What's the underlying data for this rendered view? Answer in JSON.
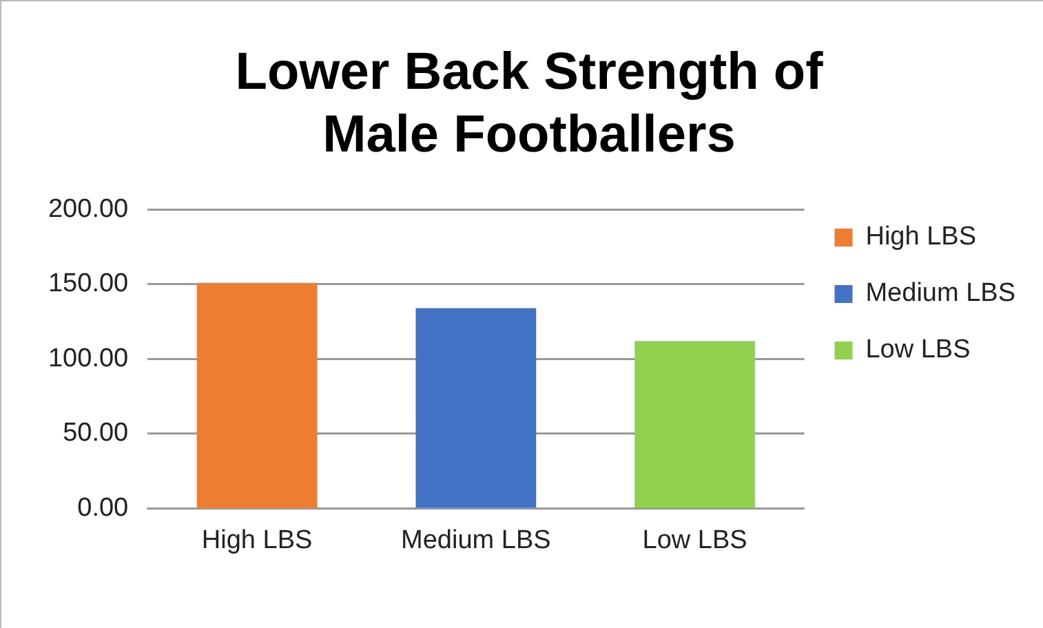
{
  "chart_data": {
    "type": "bar",
    "title": "Lower Back Strength of Male Footballers",
    "categories": [
      "High LBS",
      "Medium LBS",
      "Low LBS"
    ],
    "series": [
      {
        "name": "High LBS",
        "color": "#ed7d31",
        "values": [
          151,
          null,
          null
        ]
      },
      {
        "name": "Medium LBS",
        "color": "#4472c4",
        "values": [
          null,
          134,
          null
        ]
      },
      {
        "name": "Low LBS",
        "color": "#92d050",
        "values": [
          null,
          null,
          112
        ]
      }
    ],
    "ylim": [
      0,
      200
    ],
    "yticks": [
      {
        "value": 0,
        "label": "0.00"
      },
      {
        "value": 50,
        "label": "50.00"
      },
      {
        "value": 100,
        "label": "100.00"
      },
      {
        "value": 150,
        "label": "150.00"
      },
      {
        "value": 200,
        "label": "200.00"
      }
    ],
    "grid": "y",
    "legend": "right"
  }
}
